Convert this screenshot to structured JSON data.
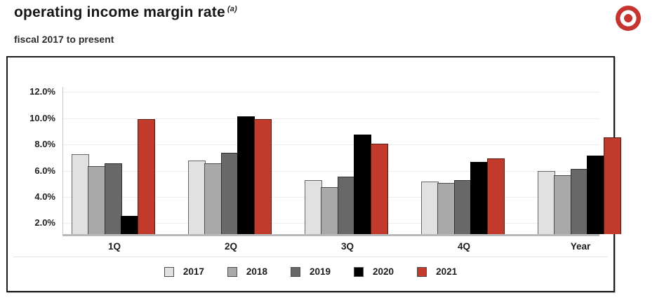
{
  "header": {
    "title": "operating income margin rate",
    "footnote_marker": "(a)",
    "subtitle": "fiscal 2017 to present"
  },
  "logo": {
    "name": "target-bullseye",
    "color": "#c5342e"
  },
  "chart_data": {
    "type": "bar",
    "title": "operating income margin rate",
    "subtitle": "fiscal 2017 to present",
    "categories": [
      "1Q",
      "2Q",
      "3Q",
      "4Q",
      "Year"
    ],
    "series": [
      {
        "name": "2017",
        "color": "#e1e1e1",
        "values": [
          7.1,
          6.6,
          5.1,
          5.0,
          5.8
        ]
      },
      {
        "name": "2018",
        "color": "#a9a9a9",
        "values": [
          6.2,
          6.4,
          4.6,
          4.9,
          5.5
        ]
      },
      {
        "name": "2019",
        "color": "#686868",
        "values": [
          6.4,
          7.2,
          5.4,
          5.1,
          6.0
        ]
      },
      {
        "name": "2020",
        "color": "#000000",
        "values": [
          2.4,
          10.0,
          8.6,
          6.5,
          7.0
        ]
      },
      {
        "name": "2021",
        "color": "#c23a2c",
        "values": [
          9.8,
          9.8,
          7.9,
          6.8,
          8.4
        ]
      }
    ],
    "unit": "%",
    "xlabel": "",
    "ylabel": "",
    "yticks": [
      2,
      4,
      6,
      8,
      10,
      12
    ],
    "ytick_labels": [
      "2.0%",
      "4.0%",
      "6.0%",
      "8.0%",
      "10.0%",
      "12.0%"
    ],
    "ylim": [
      1.0,
      12.4
    ],
    "grid": "horizontal",
    "legend_position": "bottom"
  }
}
